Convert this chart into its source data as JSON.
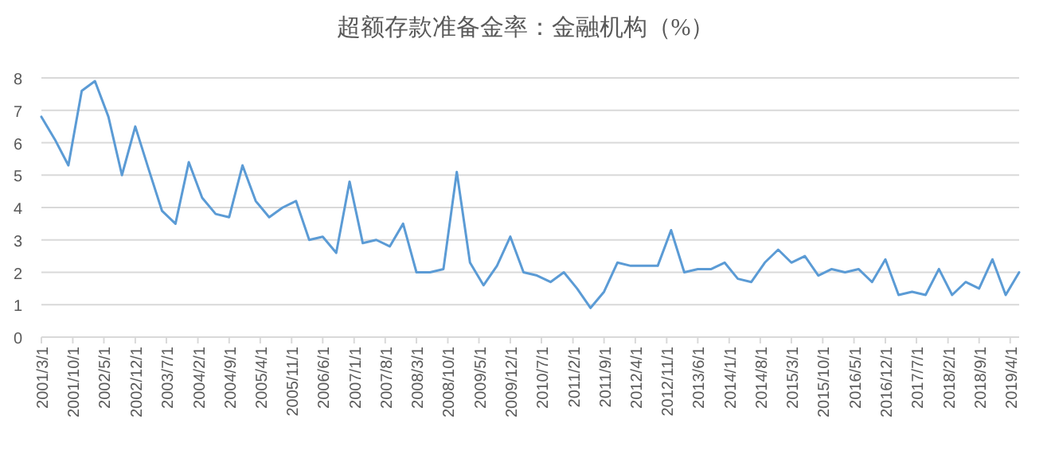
{
  "chart_data": {
    "type": "line",
    "title": "超额存款准备金率：金融机构（%）",
    "x": [
      "2001-03",
      "2001-06",
      "2001-09",
      "2001-12",
      "2002-03",
      "2002-06",
      "2002-09",
      "2002-12",
      "2003-03",
      "2003-06",
      "2003-09",
      "2003-12",
      "2004-03",
      "2004-06",
      "2004-09",
      "2004-12",
      "2005-03",
      "2005-06",
      "2005-09",
      "2005-12",
      "2006-03",
      "2006-06",
      "2006-09",
      "2006-12",
      "2007-03",
      "2007-06",
      "2007-09",
      "2007-12",
      "2008-03",
      "2008-06",
      "2008-09",
      "2008-12",
      "2009-03",
      "2009-06",
      "2009-09",
      "2009-12",
      "2010-03",
      "2010-06",
      "2010-09",
      "2010-12",
      "2011-03",
      "2011-06",
      "2011-09",
      "2011-12",
      "2012-03",
      "2012-06",
      "2012-09",
      "2012-12",
      "2013-03",
      "2013-06",
      "2013-09",
      "2013-12",
      "2014-03",
      "2014-06",
      "2014-09",
      "2014-12",
      "2015-03",
      "2015-06",
      "2015-09",
      "2015-12",
      "2016-03",
      "2016-06",
      "2016-09",
      "2016-12",
      "2017-03",
      "2017-06",
      "2017-09",
      "2017-12",
      "2018-03",
      "2018-06",
      "2018-09",
      "2018-12",
      "2019-03",
      "2019-06"
    ],
    "series": [
      {
        "color": "#5b9bd5",
        "values": [
          6.8,
          6.1,
          5.3,
          7.6,
          7.9,
          6.8,
          5.0,
          6.5,
          5.2,
          3.9,
          3.5,
          5.4,
          4.3,
          3.8,
          3.7,
          5.3,
          4.2,
          3.7,
          4.0,
          4.2,
          3.0,
          3.1,
          2.6,
          4.8,
          2.9,
          3.0,
          2.8,
          3.5,
          2.0,
          2.0,
          2.1,
          5.1,
          2.3,
          1.6,
          2.2,
          3.1,
          2.0,
          1.9,
          1.7,
          2.0,
          1.5,
          0.9,
          1.4,
          2.3,
          2.2,
          2.2,
          2.2,
          3.3,
          2.0,
          2.1,
          2.1,
          2.3,
          1.8,
          1.7,
          2.3,
          2.7,
          2.3,
          2.5,
          1.9,
          2.1,
          2.0,
          2.1,
          1.7,
          2.4,
          1.3,
          1.4,
          1.3,
          2.1,
          1.3,
          1.7,
          1.5,
          2.4,
          1.3,
          2.0
        ]
      }
    ],
    "xlim": [
      "2001-03-01",
      "2019-06-01"
    ],
    "xticks": [
      {
        "value": "2001-03-01",
        "label": "2001/3/1"
      },
      {
        "value": "2001-10-01",
        "label": "2001/10/1"
      },
      {
        "value": "2002-05-01",
        "label": "2002/5/1"
      },
      {
        "value": "2002-12-01",
        "label": "2002/12/1"
      },
      {
        "value": "2003-07-01",
        "label": "2003/7/1"
      },
      {
        "value": "2004-02-01",
        "label": "2004/2/1"
      },
      {
        "value": "2004-09-01",
        "label": "2004/9/1"
      },
      {
        "value": "2005-04-01",
        "label": "2005/4/1"
      },
      {
        "value": "2005-11-01",
        "label": "2005/11/1"
      },
      {
        "value": "2006-06-01",
        "label": "2006/6/1"
      },
      {
        "value": "2007-01-01",
        "label": "2007/1/1"
      },
      {
        "value": "2007-08-01",
        "label": "2007/8/1"
      },
      {
        "value": "2008-03-01",
        "label": "2008/3/1"
      },
      {
        "value": "2008-10-01",
        "label": "2008/10/1"
      },
      {
        "value": "2009-05-01",
        "label": "2009/5/1"
      },
      {
        "value": "2009-12-01",
        "label": "2009/12/1"
      },
      {
        "value": "2010-07-01",
        "label": "2010/7/1"
      },
      {
        "value": "2011-02-01",
        "label": "2011/2/1"
      },
      {
        "value": "2011-09-01",
        "label": "2011/9/1"
      },
      {
        "value": "2012-04-01",
        "label": "2012/4/1"
      },
      {
        "value": "2012-11-01",
        "label": "2012/11/1"
      },
      {
        "value": "2013-06-01",
        "label": "2013/6/1"
      },
      {
        "value": "2014-01-01",
        "label": "2014/1/1"
      },
      {
        "value": "2014-08-01",
        "label": "2014/8/1"
      },
      {
        "value": "2015-03-01",
        "label": "2015/3/1"
      },
      {
        "value": "2015-10-01",
        "label": "2015/10/1"
      },
      {
        "value": "2016-05-01",
        "label": "2016/5/1"
      },
      {
        "value": "2016-12-01",
        "label": "2016/12/1"
      },
      {
        "value": "2017-07-01",
        "label": "2017/7/1"
      },
      {
        "value": "2018-02-01",
        "label": "2018/2/1"
      },
      {
        "value": "2018-09-01",
        "label": "2018/9/1"
      },
      {
        "value": "2019-04-01",
        "label": "2019/4/1"
      }
    ],
    "ylim": [
      0,
      8
    ],
    "yticks": [
      0,
      1,
      2,
      3,
      4,
      5,
      6,
      7,
      8
    ],
    "grid": "y",
    "marker": "none",
    "line_style": "solid"
  }
}
